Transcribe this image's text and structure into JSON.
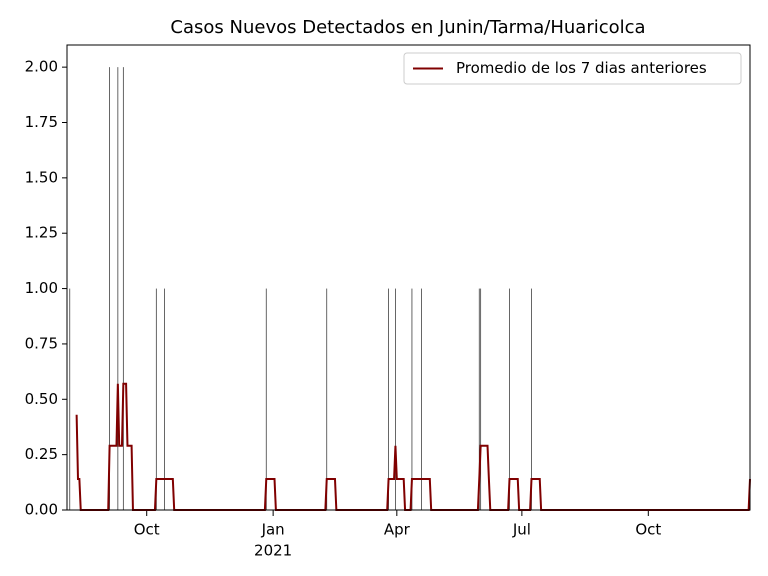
{
  "chart_data": {
    "type": "bar-line",
    "title": "Casos Nuevos Detectados en Junin/Tarma/Huaricolca",
    "xlim": [
      "2020-08-04",
      "2021-12-14"
    ],
    "ylim": [
      0,
      2.1
    ],
    "xticks": [
      {
        "value": "2020-10-01",
        "label": "Oct"
      },
      {
        "value": "2021-01-01",
        "label": "Jan",
        "sublabel": "2021"
      },
      {
        "value": "2021-04-01",
        "label": "Apr"
      },
      {
        "value": "2021-07-01",
        "label": "Jul"
      },
      {
        "value": "2021-10-01",
        "label": "Oct"
      }
    ],
    "yticks": [
      {
        "value": 0,
        "label": "0.00"
      },
      {
        "value": 0.25,
        "label": "0.25"
      },
      {
        "value": 0.5,
        "label": "0.50"
      },
      {
        "value": 0.75,
        "label": "0.75"
      },
      {
        "value": 1,
        "label": "1.00"
      },
      {
        "value": 1.25,
        "label": "1.25"
      },
      {
        "value": 1.5,
        "label": "1.50"
      },
      {
        "value": 1.75,
        "label": "1.75"
      },
      {
        "value": 2,
        "label": "2.00"
      }
    ],
    "legend": "upper right",
    "bars": {
      "color": "#000000",
      "x": [
        "2020-08-06",
        "2020-09-04",
        "2020-09-10",
        "2020-09-14",
        "2020-10-08",
        "2020-10-14",
        "2020-12-27",
        "2021-02-09",
        "2021-03-26",
        "2021-03-31",
        "2021-04-12",
        "2021-04-19",
        "2021-05-31",
        "2021-06-01",
        "2021-06-22",
        "2021-07-08",
        "2021-12-14"
      ],
      "values": [
        1,
        2,
        2,
        2,
        1,
        1,
        1,
        1,
        1,
        1,
        1,
        1,
        1,
        1,
        1,
        1,
        1
      ]
    },
    "series": [
      {
        "name": "Promedio de los 7 dias anteriores",
        "color": "#800000",
        "x": [
          "2020-08-11",
          "2020-08-12",
          "2020-08-13",
          "2020-08-14",
          "2020-09-03",
          "2020-09-04",
          "2020-09-09",
          "2020-09-10",
          "2020-09-11",
          "2020-09-13",
          "2020-09-14",
          "2020-09-16",
          "2020-09-17",
          "2020-09-20",
          "2020-09-21",
          "2020-10-07",
          "2020-10-08",
          "2020-10-20",
          "2020-10-21",
          "2020-12-26",
          "2020-12-27",
          "2021-01-02",
          "2021-01-03",
          "2021-02-08",
          "2021-02-09",
          "2021-02-15",
          "2021-02-16",
          "2021-03-25",
          "2021-03-26",
          "2021-03-30",
          "2021-03-31",
          "2021-04-01",
          "2021-04-06",
          "2021-04-07",
          "2021-04-11",
          "2021-04-12",
          "2021-04-25",
          "2021-04-26",
          "2021-05-30",
          "2021-05-31",
          "2021-06-01",
          "2021-06-06",
          "2021-06-07",
          "2021-06-08",
          "2021-06-21",
          "2021-06-22",
          "2021-06-28",
          "2021-06-29",
          "2021-07-07",
          "2021-07-08",
          "2021-07-14",
          "2021-07-15",
          "2021-12-13",
          "2021-12-14"
        ],
        "values": [
          0.43,
          0.14,
          0.14,
          0,
          0,
          0.29,
          0.29,
          0.57,
          0.29,
          0.29,
          0.57,
          0.57,
          0.29,
          0.29,
          0,
          0,
          0.14,
          0.14,
          0,
          0,
          0.14,
          0.14,
          0,
          0,
          0.14,
          0.14,
          0,
          0,
          0.14,
          0.14,
          0.29,
          0.14,
          0.14,
          0,
          0,
          0.14,
          0.14,
          0,
          0,
          0.14,
          0.29,
          0.29,
          0.14,
          0,
          0,
          0.14,
          0.14,
          0,
          0,
          0.14,
          0.14,
          0,
          0,
          0.14
        ]
      }
    ]
  }
}
